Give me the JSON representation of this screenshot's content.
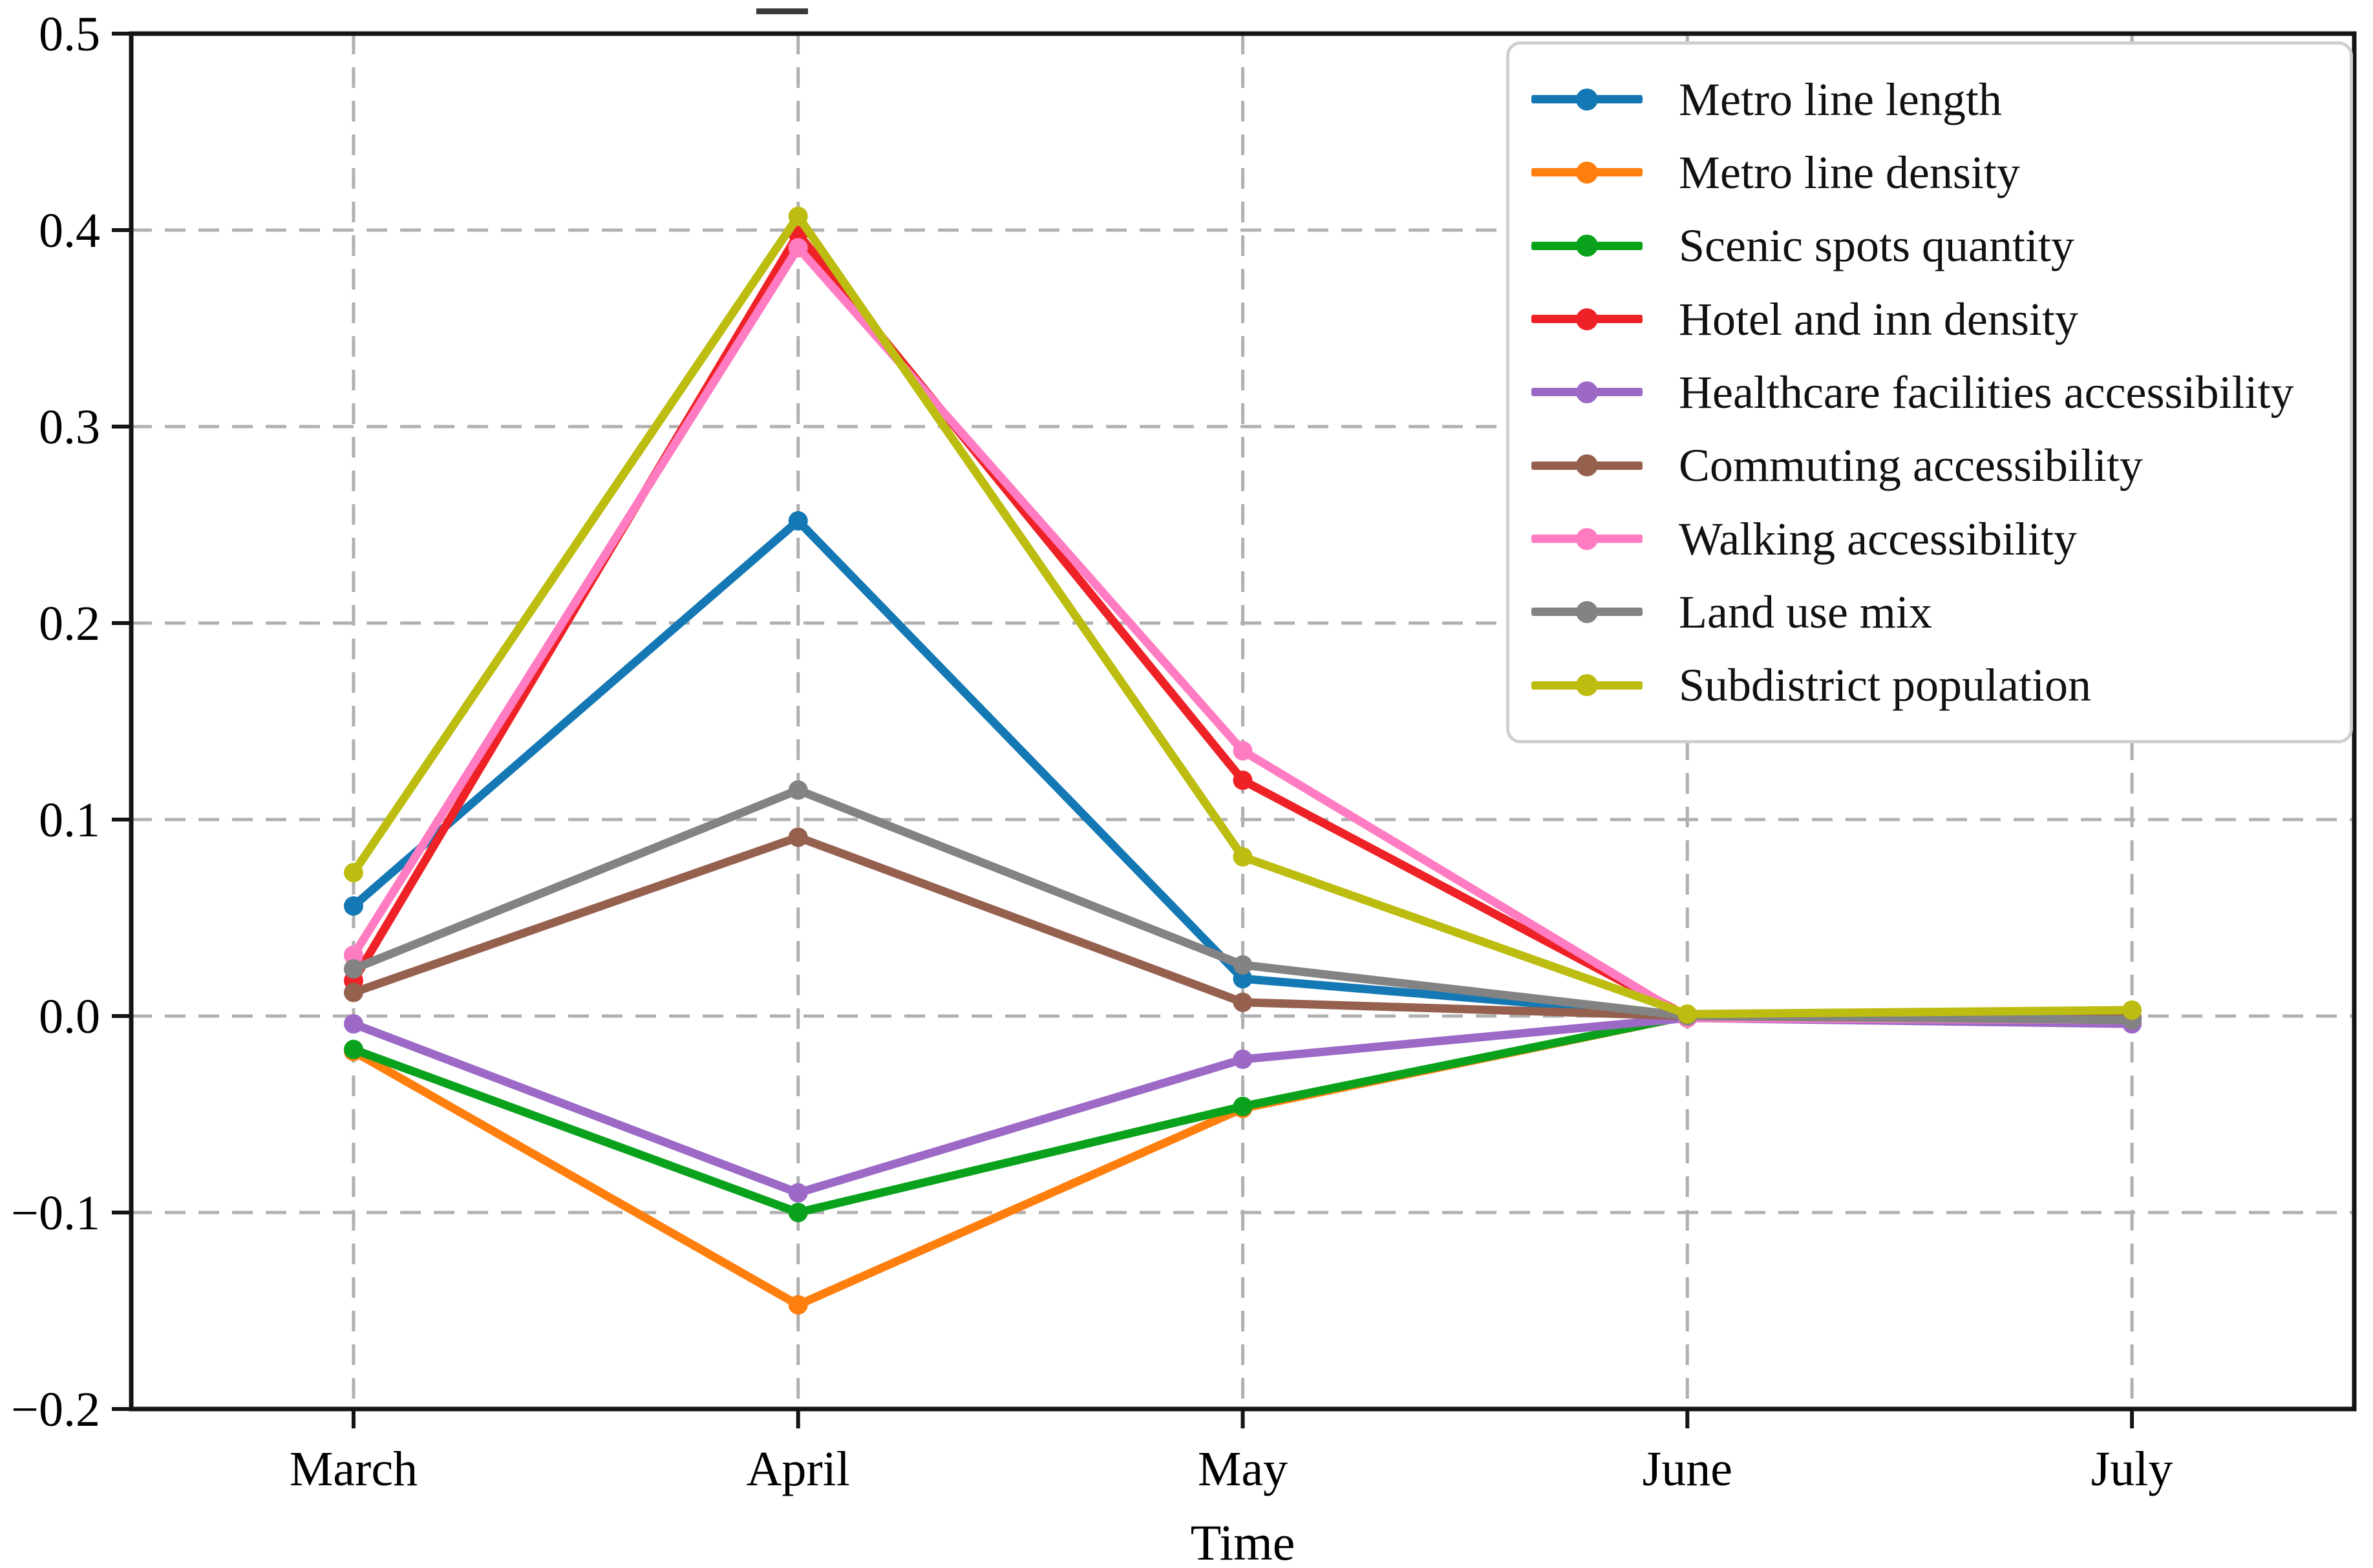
{
  "figure": {
    "title_fragment": "-",
    "background": "#ffffff",
    "spine_color": "#141414",
    "grid_color": "#b0b0b0"
  },
  "chart_data": {
    "type": "line",
    "title": "",
    "xlabel": "Time",
    "ylabel": "",
    "categories": [
      "March",
      "April",
      "May",
      "June",
      "July"
    ],
    "ylim": [
      -0.2,
      0.5
    ],
    "y_ticks": [
      0.5,
      0.4,
      0.3,
      0.2,
      0.1,
      0.0,
      -0.1,
      -0.2
    ],
    "y_tick_labels": [
      "0.5",
      "0.4",
      "0.3",
      "0.2",
      "0.1",
      "0.0",
      "−0.1",
      "−0.2"
    ],
    "grid": true,
    "grid_style": "dashed",
    "legend_position": "upper right",
    "series": [
      {
        "name": "Metro line length",
        "color": "#1478b4",
        "values": [
          0.056,
          0.252,
          0.019,
          0.0,
          -0.001
        ]
      },
      {
        "name": "Metro line density",
        "color": "#ff7f0e",
        "values": [
          -0.018,
          -0.147,
          -0.047,
          0.0,
          -0.001
        ]
      },
      {
        "name": "Scenic spots quantity",
        "color": "#0aa21c",
        "values": [
          -0.017,
          -0.1,
          -0.046,
          0.0,
          -0.001
        ]
      },
      {
        "name": "Hotel and inn density",
        "color": "#ee2226",
        "values": [
          0.018,
          0.398,
          0.12,
          0.0,
          -0.001
        ]
      },
      {
        "name": "Healthcare facilities accessibility",
        "color": "#9c69c7",
        "values": [
          -0.004,
          -0.09,
          -0.022,
          -0.001,
          -0.004
        ]
      },
      {
        "name": "Commuting accessibility",
        "color": "#96604f",
        "values": [
          0.012,
          0.091,
          0.007,
          0.0,
          -0.001
        ]
      },
      {
        "name": "Walking accessibility",
        "color": "#ff7cc2",
        "values": [
          0.031,
          0.391,
          0.135,
          -0.001,
          -0.002
        ]
      },
      {
        "name": "Land use mix",
        "color": "#838383",
        "values": [
          0.024,
          0.115,
          0.026,
          0.0,
          -0.002
        ]
      },
      {
        "name": "Subdistrict population",
        "color": "#bcbd10",
        "values": [
          0.073,
          0.407,
          0.081,
          0.001,
          0.003
        ]
      }
    ]
  }
}
